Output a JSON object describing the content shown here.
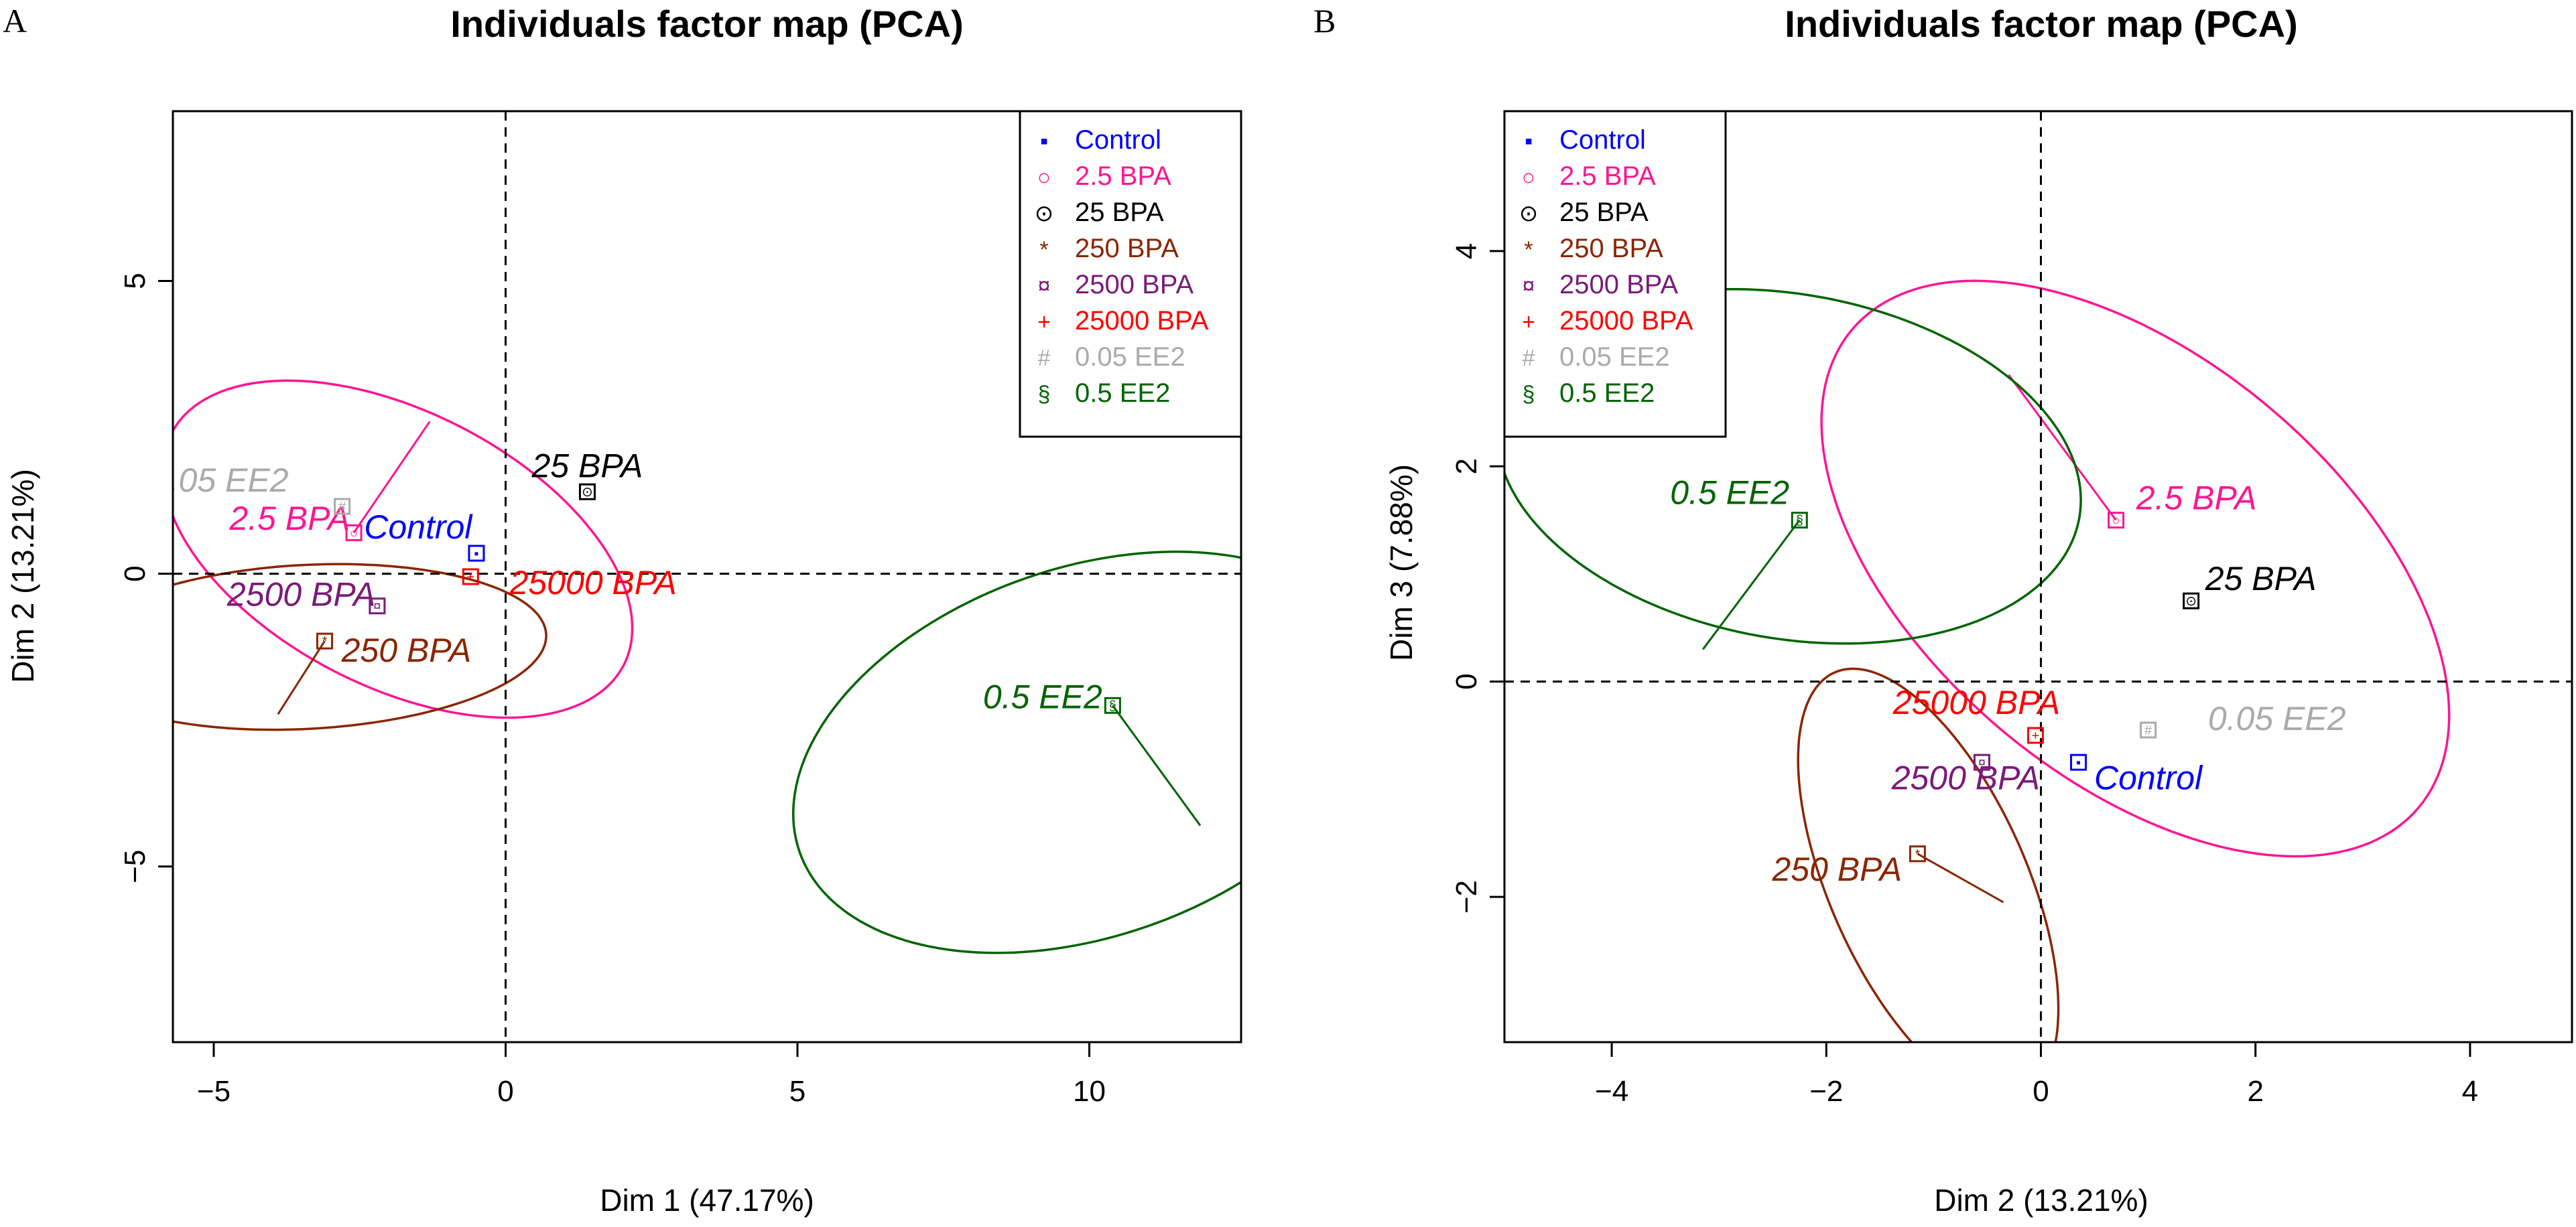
{
  "figure": {
    "panels": [
      "A",
      "B"
    ]
  },
  "chart_data": [
    {
      "panel": "A",
      "type": "scatter",
      "title": "Individuals factor map (PCA)",
      "xlabel": "Dim 1 (47.17%)",
      "ylabel": "Dim 2 (13.21%)",
      "xlim": [
        -5.7,
        12.6
      ],
      "ylim": [
        -8.0,
        7.9
      ],
      "xticks": [
        -5,
        0,
        5,
        10
      ],
      "xtick_labels": [
        "−5",
        "0",
        "5",
        "10"
      ],
      "yticks": [
        -5,
        0,
        5
      ],
      "ytick_labels": [
        "−5",
        "0",
        "5"
      ],
      "reference_lines": {
        "x": 0,
        "y": 0
      },
      "legend": {
        "position": "top-right"
      },
      "groups": [
        {
          "name": "Control",
          "label": "Control",
          "color": "#0000ff",
          "symbol": "▪",
          "x": -0.5,
          "y": 0.35,
          "label_x": -1.5,
          "label_y": 0.6
        },
        {
          "name": "2.5 BPA",
          "label": "2.5 BPA",
          "color": "#ff1493",
          "symbol": "○",
          "x": -2.6,
          "y": 0.7,
          "label_x": -3.7,
          "label_y": 0.75,
          "ellipse": {
            "cx": -1.85,
            "cy": 0.42,
            "rx": 4.35,
            "ry": 2.35,
            "angle_deg": -27
          },
          "spoke_to": [
            -1.3,
            2.6
          ]
        },
        {
          "name": "25 BPA",
          "label": "25 BPA",
          "color": "#000000",
          "symbol": "⊙",
          "x": 1.4,
          "y": 1.4,
          "label_x": 1.4,
          "label_y": 1.65
        },
        {
          "name": "250 BPA",
          "label": "250 BPA",
          "color": "#8b2500",
          "symbol": "*",
          "x": -3.1,
          "y": -1.15,
          "label_x": -1.7,
          "label_y": -1.5,
          "ellipse": {
            "cx": -3.42,
            "cy": -1.25,
            "rx": 4.12,
            "ry": 1.4,
            "angle_deg": 3
          },
          "spoke_to": [
            -3.9,
            -2.4
          ]
        },
        {
          "name": "2500 BPA",
          "label": "2500 BPA",
          "color": "#7a1a7a",
          "symbol": "¤",
          "x": -2.2,
          "y": -0.55,
          "label_x": -3.5,
          "label_y": -0.55
        },
        {
          "name": "25000 BPA",
          "label": "25000 BPA",
          "color": "#ff0000",
          "symbol": "+",
          "x": -0.6,
          "y": -0.05,
          "label_x": 1.5,
          "label_y": -0.35
        },
        {
          "name": "0.05 EE2",
          "label": "0.05 EE2",
          "color": "#aaaaaa",
          "symbol": "#",
          "x": -2.8,
          "y": 1.15,
          "label_x": -4.9,
          "label_y": 1.4
        },
        {
          "name": "0.5 EE2",
          "label": "0.5 EE2",
          "color": "#006400",
          "symbol": "§",
          "x": 10.4,
          "y": -2.25,
          "label_x": 9.2,
          "label_y": -2.3,
          "ellipse": {
            "cx": 9.95,
            "cy": -3.05,
            "rx": 5.2,
            "ry": 3.15,
            "angle_deg": 19
          },
          "spoke_to": [
            11.9,
            -4.3
          ]
        }
      ]
    },
    {
      "panel": "B",
      "type": "scatter",
      "title": "Individuals factor map (PCA)",
      "xlabel": "Dim 2 (13.21%)",
      "ylabel": "Dim 3 (7.88%)",
      "xlim": [
        -5.0,
        4.95
      ],
      "ylim": [
        -3.35,
        5.3
      ],
      "xticks": [
        -4,
        -2,
        0,
        2,
        4
      ],
      "xtick_labels": [
        "−4",
        "−2",
        "0",
        "2",
        "4"
      ],
      "yticks": [
        -2,
        0,
        2,
        4
      ],
      "ytick_labels": [
        "−2",
        "0",
        "2",
        "4"
      ],
      "reference_lines": {
        "x": 0,
        "y": 0
      },
      "legend": {
        "position": "top-left"
      },
      "groups": [
        {
          "name": "Control",
          "label": "Control",
          "color": "#0000ff",
          "symbol": "▪",
          "x": 0.35,
          "y": -0.75,
          "label_x": 1.0,
          "label_y": -1.0
        },
        {
          "name": "2.5 BPA",
          "label": "2.5 BPA",
          "color": "#ff1493",
          "symbol": "○",
          "x": 0.7,
          "y": 1.5,
          "label_x": 1.45,
          "label_y": 1.6,
          "ellipse": {
            "cx": 0.88,
            "cy": 1.05,
            "rx": 3.45,
            "ry": 1.95,
            "angle_deg": -40
          },
          "spoke_to": [
            -0.3,
            2.85
          ]
        },
        {
          "name": "25 BPA",
          "label": "25 BPA",
          "color": "#000000",
          "symbol": "⊙",
          "x": 1.4,
          "y": 0.75,
          "label_x": 2.05,
          "label_y": 0.85
        },
        {
          "name": "250 BPA",
          "label": "250 BPA",
          "color": "#8b2500",
          "symbol": "*",
          "x": -1.15,
          "y": -1.6,
          "label_x": -1.9,
          "label_y": -1.85,
          "ellipse": {
            "cx": -1.05,
            "cy": -1.88,
            "rx": 2.15,
            "ry": 0.92,
            "angle_deg": -66
          },
          "spoke_to": [
            -0.35,
            -2.05
          ]
        },
        {
          "name": "2500 BPA",
          "label": "2500 BPA",
          "color": "#7a1a7a",
          "symbol": "¤",
          "x": -0.55,
          "y": -0.75,
          "label_x": -0.7,
          "label_y": -1.0
        },
        {
          "name": "25000 BPA",
          "label": "25000 BPA",
          "color": "#ff0000",
          "symbol": "+",
          "x": -0.05,
          "y": -0.5,
          "label_x": -0.6,
          "label_y": -0.3
        },
        {
          "name": "0.05 EE2",
          "label": "0.05 EE2",
          "color": "#aaaaaa",
          "symbol": "#",
          "x": 1.0,
          "y": -0.45,
          "label_x": 2.2,
          "label_y": -0.45
        },
        {
          "name": "0.5 EE2",
          "label": "0.5 EE2",
          "color": "#006400",
          "symbol": "§",
          "x": -2.25,
          "y": 1.5,
          "label_x": -2.9,
          "label_y": 1.65,
          "ellipse": {
            "cx": -2.35,
            "cy": 2.0,
            "rx": 2.75,
            "ry": 1.6,
            "angle_deg": -10
          },
          "spoke_to": [
            -3.15,
            0.3
          ]
        }
      ]
    }
  ]
}
